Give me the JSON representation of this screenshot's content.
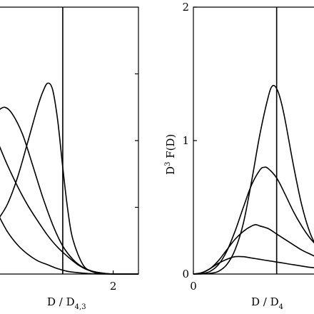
{
  "chart_data": [
    {
      "type": "line",
      "xlabel": "D / D",
      "xlabel_sub": "4,3",
      "ylabel": "",
      "xlim": [
        -0.3,
        2.5
      ],
      "ylim": [
        0,
        2
      ],
      "x_ticks": [
        1,
        2
      ],
      "x_tick_labels": [
        "",
        "2"
      ],
      "y_ticks": [
        0.5,
        1.0,
        1.5
      ],
      "vertical_line_x": 1,
      "grid": false,
      "series": [
        {
          "x": [
            -0.3,
            -0.1,
            0.1,
            0.3,
            0.5,
            0.6,
            0.7,
            0.8,
            0.9,
            1.0,
            1.1,
            1.2,
            1.4,
            1.6,
            1.8,
            2.0,
            2.2,
            2.5
          ],
          "y": [
            0.4,
            0.52,
            0.72,
            0.98,
            1.25,
            1.36,
            1.43,
            1.38,
            1.15,
            0.8,
            0.48,
            0.26,
            0.07,
            0.015,
            0.004,
            0.0,
            0.0,
            0.0
          ]
        },
        {
          "x": [
            -0.3,
            -0.15,
            0.0,
            0.2,
            0.4,
            0.6,
            0.8,
            1.0,
            1.2,
            1.4,
            1.6,
            1.8,
            2.0,
            2.5
          ],
          "y": [
            1.22,
            1.25,
            1.2,
            1.05,
            0.82,
            0.58,
            0.37,
            0.21,
            0.11,
            0.05,
            0.02,
            0.006,
            0.0,
            0.0
          ]
        },
        {
          "x": [
            -0.3,
            -0.1,
            0.1,
            0.3,
            0.5,
            0.7,
            0.9,
            1.1,
            1.3,
            1.5,
            1.7,
            2.0,
            2.5
          ],
          "y": [
            1.0,
            0.82,
            0.66,
            0.52,
            0.4,
            0.29,
            0.2,
            0.13,
            0.07,
            0.03,
            0.012,
            0.0,
            0.0
          ]
        },
        {
          "x": [
            -0.3,
            -0.1,
            0.1,
            0.3,
            0.5,
            0.7,
            0.9,
            1.1,
            1.3,
            1.5,
            1.8,
            2.5
          ],
          "y": [
            0.46,
            0.32,
            0.22,
            0.15,
            0.1,
            0.07,
            0.04,
            0.02,
            0.01,
            0.004,
            0.0,
            0.0
          ]
        }
      ]
    },
    {
      "type": "line",
      "xlabel": "D / D",
      "xlabel_sub": "4",
      "ylabel": "D",
      "ylabel_sup": "3",
      "ylabel_rest": " F(D)",
      "xlim": [
        0,
        1.5
      ],
      "ylim": [
        0,
        2
      ],
      "x_ticks": [
        0,
        1
      ],
      "x_tick_labels": [
        "0",
        ""
      ],
      "y_ticks": [
        0,
        1,
        2
      ],
      "y_tick_labels": [
        "0",
        "1",
        "2"
      ],
      "vertical_line_x": 1,
      "grid": false,
      "series": [
        {
          "x": [
            0,
            0.1,
            0.2,
            0.3,
            0.4,
            0.5,
            0.6,
            0.7,
            0.8,
            0.9,
            0.95,
            1.0,
            1.05,
            1.1,
            1.2,
            1.3,
            1.4,
            1.5
          ],
          "y": [
            0.0,
            0.001,
            0.005,
            0.02,
            0.07,
            0.18,
            0.38,
            0.7,
            1.05,
            1.33,
            1.41,
            1.39,
            1.3,
            1.16,
            0.82,
            0.52,
            0.31,
            0.18
          ]
        },
        {
          "x": [
            0,
            0.1,
            0.2,
            0.3,
            0.4,
            0.5,
            0.6,
            0.7,
            0.8,
            0.85,
            0.9,
            1.0,
            1.1,
            1.2,
            1.3,
            1.4,
            1.5
          ],
          "y": [
            0.0,
            0.003,
            0.02,
            0.07,
            0.17,
            0.32,
            0.5,
            0.67,
            0.78,
            0.8,
            0.79,
            0.72,
            0.6,
            0.47,
            0.36,
            0.27,
            0.2
          ]
        },
        {
          "x": [
            0,
            0.1,
            0.2,
            0.3,
            0.4,
            0.5,
            0.6,
            0.7,
            0.75,
            0.8,
            0.9,
            1.0,
            1.1,
            1.2,
            1.3,
            1.4,
            1.5
          ],
          "y": [
            0.0,
            0.01,
            0.04,
            0.1,
            0.18,
            0.26,
            0.32,
            0.36,
            0.37,
            0.36,
            0.34,
            0.3,
            0.26,
            0.22,
            0.18,
            0.15,
            0.12
          ]
        },
        {
          "x": [
            0,
            0.1,
            0.2,
            0.3,
            0.4,
            0.5,
            0.6,
            0.7,
            0.8,
            0.9,
            1.0,
            1.1,
            1.2,
            1.3,
            1.4,
            1.5
          ],
          "y": [
            0.0,
            0.01,
            0.04,
            0.08,
            0.11,
            0.13,
            0.13,
            0.12,
            0.11,
            0.1,
            0.09,
            0.08,
            0.07,
            0.06,
            0.05,
            0.045
          ]
        }
      ]
    }
  ]
}
